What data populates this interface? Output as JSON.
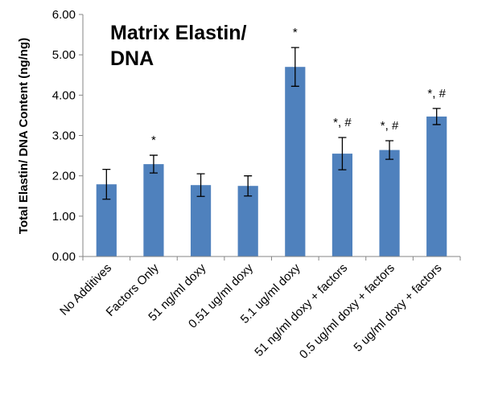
{
  "chart_data": {
    "type": "bar",
    "title_lines": [
      "Matrix Elastin/",
      "DNA"
    ],
    "xlabel": "",
    "ylabel": "Total Elastin/ DNA Content (ng/ng)",
    "ylim": [
      0,
      6
    ],
    "ytick_labels": [
      "0.00",
      "1.00",
      "2.00",
      "3.00",
      "4.00",
      "5.00",
      "6.00"
    ],
    "grid": false,
    "bar_color": "#4f81bd",
    "categories": [
      "No Additives",
      "Factors Only",
      "51 ng/ml doxy",
      "0.51 ug/ml doxy",
      "5.1  ug/ml doxy",
      "51 ng/ml doxy + factors",
      "0.5 ug/ml doxy + factors",
      "5 ug/ml doxy + factors"
    ],
    "values": [
      1.79,
      2.29,
      1.77,
      1.75,
      4.7,
      2.55,
      2.64,
      3.47
    ],
    "errors": [
      0.37,
      0.22,
      0.28,
      0.25,
      0.48,
      0.4,
      0.23,
      0.2
    ],
    "annotations": [
      "",
      "*",
      "",
      "",
      "*",
      "*, #",
      "*, #",
      "*, #"
    ]
  }
}
